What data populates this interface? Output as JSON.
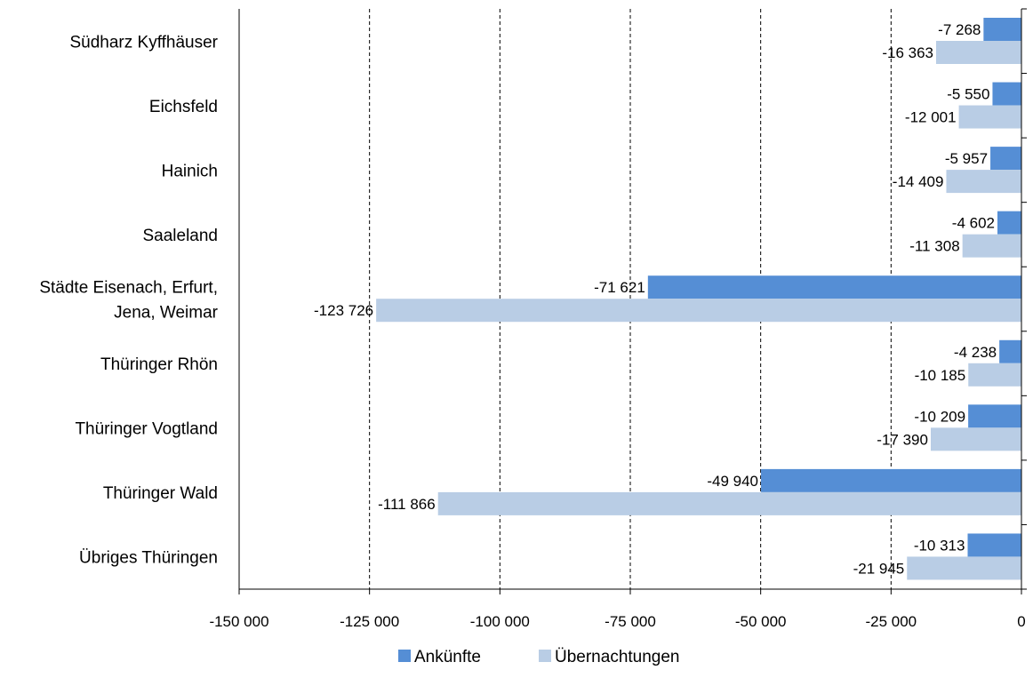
{
  "chart_data": {
    "type": "bar",
    "orientation": "horizontal",
    "categories": [
      [
        "Südharz Kyffhäuser"
      ],
      [
        "Eichsfeld"
      ],
      [
        "Hainich"
      ],
      [
        "Saaleland"
      ],
      [
        "Städte Eisenach, Erfurt,",
        "Jena, Weimar"
      ],
      [
        "Thüringer Rhön"
      ],
      [
        "Thüringer Vogtland"
      ],
      [
        "Thüringer Wald"
      ],
      [
        "Übriges Thüringen"
      ]
    ],
    "series": [
      {
        "name": "Ankünfte",
        "color": "#558ed5",
        "values": [
          -7268,
          -5550,
          -5957,
          -4602,
          -71621,
          -4238,
          -10209,
          -49940,
          -10313
        ],
        "labels": [
          "-7 268",
          "-5 550",
          "-5 957",
          "-4 602",
          "-71 621",
          "-4 238",
          "-10 209",
          "-49 940",
          "-10 313"
        ]
      },
      {
        "name": "Übernachtungen",
        "color": "#b9cde5",
        "values": [
          -16363,
          -12001,
          -14409,
          -11308,
          -123726,
          -10185,
          -17390,
          -111866,
          -21945
        ],
        "labels": [
          "-16 363",
          "-12 001",
          "-14 409",
          "-11 308",
          "-123 726",
          "-10 185",
          "-17 390",
          "-111 866",
          "-21 945"
        ]
      }
    ],
    "xlim": [
      -150000,
      0
    ],
    "xticks": [
      -150000,
      -125000,
      -100000,
      -75000,
      -50000,
      -25000,
      0
    ],
    "xtick_labels": [
      "-150 000",
      "-125 000",
      "-100 000",
      "-75 000",
      "-50 000",
      "-25 000",
      "0"
    ],
    "grid": "vertical dashed",
    "legend_position": "bottom"
  }
}
